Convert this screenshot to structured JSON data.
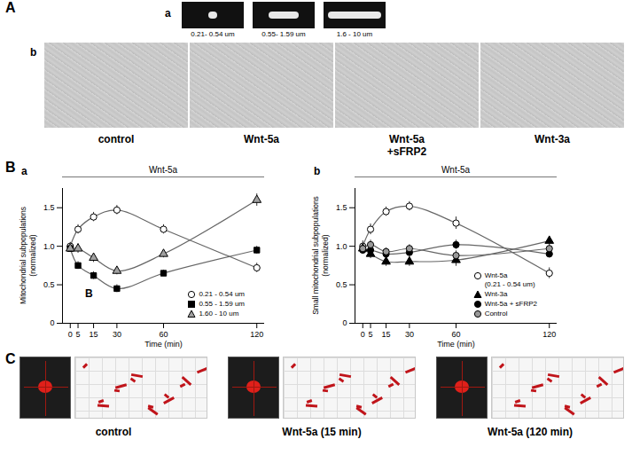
{
  "figure": {
    "panels": [
      {
        "label": "A",
        "parts": [
          {
            "label": "a",
            "images": [
              {
                "caption": [
                  "0.21- 0.54 um"
                ]
              },
              {
                "caption": [
                  "0.55- 1.59 um"
                ]
              },
              {
                "caption": [
                  "1.6 - 10 um"
                ]
              }
            ]
          },
          {
            "label": "b",
            "images": [
              {
                "caption": [
                  "control"
                ]
              },
              {
                "caption": [
                  "Wnt-5a"
                ]
              },
              {
                "caption": [
                  "Wnt-5a",
                  "+sFRP2"
                ]
              },
              {
                "caption": [
                  "Wnt-3a"
                ]
              }
            ]
          }
        ]
      },
      {
        "label": "B"
      },
      {
        "label": "C",
        "images": [
          {
            "caption": [
              "control"
            ]
          },
          {
            "caption": [
              "Wnt-5a (15 min)"
            ]
          },
          {
            "caption": [
              "Wnt-5a (120 min)"
            ]
          }
        ]
      }
    ]
  },
  "chart_data": [
    {
      "panel": "a",
      "type": "line",
      "title": "Wnt-5a",
      "x": [
        0,
        5,
        15,
        30,
        60,
        120
      ],
      "xlim": [
        -5,
        125
      ],
      "xticks": [
        0,
        5,
        15,
        30,
        60,
        120
      ],
      "xlabel": "Time (min)",
      "ylabel": "Mitochondrial subpopulations (normalized)",
      "ylim": [
        0,
        1.75
      ],
      "yticks": [
        0,
        0.5,
        {
          "value": 1,
          "label": "1.0"
        },
        1.5
      ],
      "grid": false,
      "legend": "bottom-right",
      "series": [
        {
          "name": "0.21 - 0.54 um",
          "marker": "circle",
          "color": "#ffffff",
          "values": [
            1.0,
            1.22,
            1.38,
            1.47,
            1.22,
            0.72
          ],
          "errors": [
            0.05,
            0.06,
            0.06,
            0.06,
            0.06,
            0.06
          ]
        },
        {
          "name": "0.55 - 1.59 um",
          "marker": "square",
          "color": "#000000",
          "values": [
            0.97,
            0.75,
            0.62,
            0.45,
            0.65,
            0.95
          ],
          "errors": [
            0.04,
            0.05,
            0.05,
            0.05,
            0.04,
            0.05
          ]
        },
        {
          "name": "1.60 - 10 um",
          "marker": "triangle",
          "color": "#a0a0a0",
          "values": [
            0.97,
            0.97,
            0.85,
            0.68,
            0.9,
            1.6
          ],
          "errors": [
            0.05,
            0.06,
            0.06,
            0.05,
            0.05,
            0.08
          ]
        }
      ],
      "annotations": [
        {
          "text": "B",
          "x": 12,
          "y": 0.38
        }
      ]
    },
    {
      "panel": "b",
      "type": "line",
      "title": "Wnt-5a",
      "x": [
        0,
        5,
        15,
        30,
        60,
        120
      ],
      "xlim": [
        -5,
        125
      ],
      "xticks": [
        0,
        5,
        15,
        30,
        60,
        120
      ],
      "xlabel": "Time (min)",
      "ylabel": "Small mitochondrial subpopulations (normalized)",
      "ylim": [
        0,
        1.75
      ],
      "yticks": [
        0,
        0.5,
        {
          "value": 1,
          "label": "1.0"
        },
        1.5
      ],
      "grid": false,
      "legend": "bottom-right",
      "series": [
        {
          "name": "Wnt-5a\n(0.21 - 0.54 um)",
          "marker": "circle",
          "color": "#ffffff",
          "values": [
            1.0,
            1.22,
            1.45,
            1.52,
            1.3,
            0.65
          ],
          "errors": [
            0.07,
            0.07,
            0.06,
            0.06,
            0.08,
            0.07
          ]
        },
        {
          "name": "Wnt-3a",
          "marker": "triangle",
          "color": "#000000",
          "values": [
            0.97,
            0.9,
            0.8,
            0.8,
            0.82,
            1.07
          ],
          "errors": [
            0.05,
            0.06,
            0.06,
            0.06,
            0.08,
            0.06
          ]
        },
        {
          "name": "Wnt-5a + sFRP2",
          "marker": "circle",
          "color": "#000000",
          "values": [
            0.95,
            0.95,
            0.9,
            0.92,
            1.02,
            0.9
          ],
          "errors": [
            0.05,
            0.05,
            0.05,
            0.05,
            0.06,
            0.05
          ]
        },
        {
          "name": "Control",
          "marker": "circle",
          "color": "#999999",
          "values": [
            0.97,
            1.02,
            0.93,
            0.97,
            0.88,
            0.97
          ],
          "errors": [
            0.05,
            0.06,
            0.05,
            0.05,
            0.06,
            0.05
          ]
        }
      ]
    }
  ]
}
